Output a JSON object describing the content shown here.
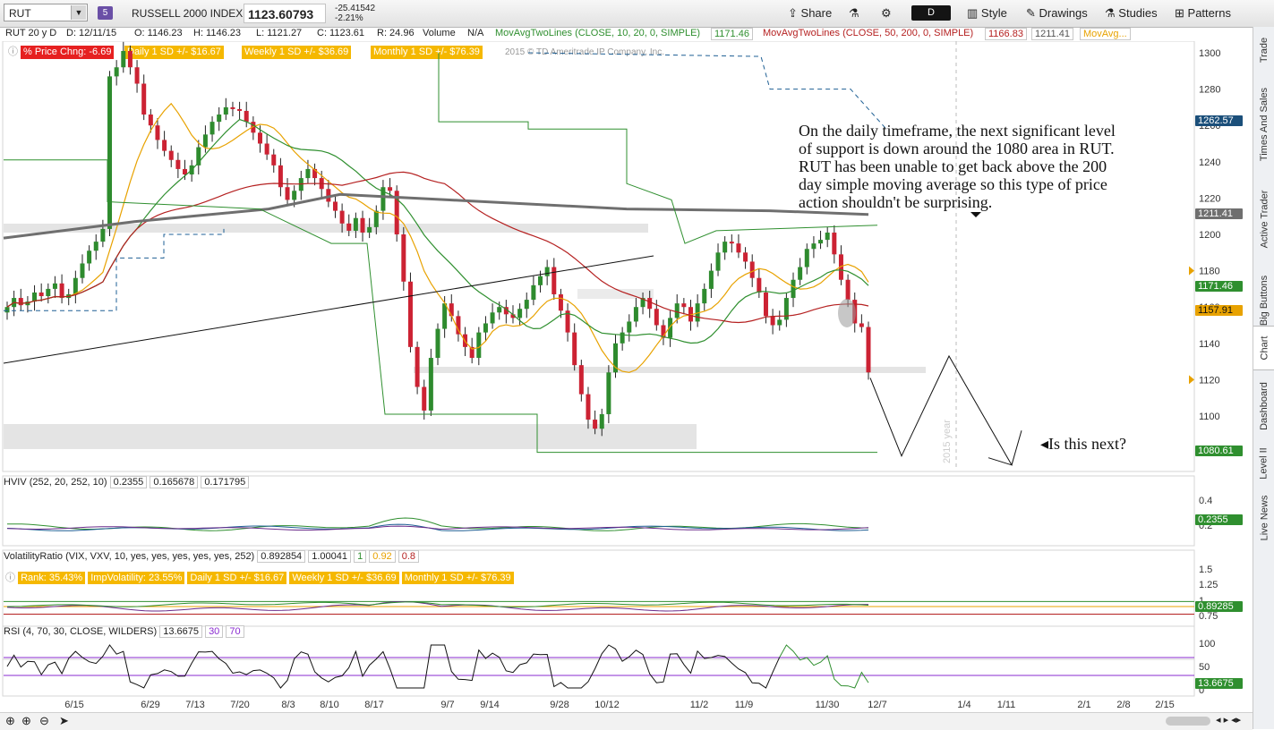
{
  "toolbar": {
    "symbol": "RUT",
    "symbol_badge": "5",
    "index_name": "RUSSELL 2000 INDEX",
    "last_price": "1123.60793",
    "net_change": "-25.41542",
    "pct_change": "-2.21%",
    "share": "Share",
    "style": "Style",
    "drawings": "Drawings",
    "studies": "Studies",
    "patterns": "Patterns",
    "aggregation": "D"
  },
  "infobar": {
    "period": "RUT 20 y D",
    "date": "D: 12/11/15",
    "open": "O: 1146.23",
    "high": "H: 1146.23",
    "low": "L: 1121.27",
    "close": "C: 1123.61",
    "range": "R: 24.96",
    "volume_label": "Volume",
    "volume_value": "N/A",
    "ma1_label": "MovAvgTwoLines (CLOSE, 10, 20, 0, SIMPLE)",
    "ma1_value": "1171.46",
    "ma2_label": "MovAvgTwoLines (CLOSE, 50, 200, 0, SIMPLE)",
    "ma2_value1": "1166.83",
    "ma2_value2": "1211.41",
    "ma3_label": "MovAvg..."
  },
  "banner": {
    "pct_price_change": "% Price Chng: -6.69",
    "daily_sd": "Daily 1 SD +/- $16.67",
    "weekly_sd": "Weekly 1 SD +/- $36.69",
    "monthly_sd": "Monthly 1 SD +/- $76.39",
    "copyright": "2015 © TD Ameritrade IP Company, Inc."
  },
  "annotations": {
    "main_text": [
      "On the daily  timeframe, the next significant level",
      "of support is down around the 1080 area in RUT.",
      "RUT has been unable to get back above the 200",
      "day simple moving average so this type of price",
      "action shouldn't be surprising."
    ],
    "question": "Is this next?",
    "year_marker": "2015 year"
  },
  "hviv": {
    "label": "HVIV (252, 20, 252, 10)",
    "v1": "0.2355",
    "v2": "0.165678",
    "v3": "0.171795",
    "axis_ticks": [
      "0.4",
      "0.2"
    ],
    "last_box": "0.2355"
  },
  "volratio": {
    "label": "VolatilityRatio (VIX, VXV, 10, yes, yes, yes, yes, yes, 252)",
    "v1": "0.892854",
    "v2": "1.00041",
    "v3": "1",
    "v4": "0.92",
    "v5": "0.8",
    "rank": "Rank: 35.43%",
    "impvol": "ImpVolatility: 23.55%",
    "daily_sd": "Daily 1 SD +/- $16.67",
    "weekly_sd": "Weekly 1 SD +/- $36.69",
    "monthly_sd": "Monthly 1 SD +/- $76.39",
    "axis_ticks": [
      "1.5",
      "1.25",
      "1",
      "0.75"
    ],
    "last_box": "0.89285"
  },
  "rsi": {
    "label": "RSI (4, 70, 30, CLOSE, WILDERS)",
    "value": "13.6675",
    "os": "30",
    "ob": "70",
    "axis_ticks": [
      "100",
      "50",
      "0"
    ],
    "last_box": "13.6675"
  },
  "side_tabs": [
    "Trade",
    "Times And Sales",
    "Active Trader",
    "Big Buttons",
    "Chart",
    "Dashboard",
    "Level II",
    "Live News"
  ],
  "colors": {
    "up_candle": "#2e8b2e",
    "down_candle": "#cc2233",
    "ma10": "#e8a200",
    "ma20": "#2f8f2f",
    "ma50": "#b52121",
    "ma200": "#6f6f6f",
    "sd_band": "#2f8f2f",
    "dashed_band": "#1e5f94"
  },
  "chart_data": {
    "type": "candlestick",
    "title": "RUSSELL 2000 INDEX",
    "ylim": [
      1080,
      1300
    ],
    "y_ticks": [
      1100,
      1120,
      1140,
      1160,
      1180,
      1200,
      1220,
      1240,
      1260,
      1280,
      1300
    ],
    "x_tick_labels": [
      "6/15",
      "6/29",
      "7/13",
      "7/20",
      "8/3",
      "8/10",
      "8/17",
      "9/7",
      "9/14",
      "9/28",
      "10/12",
      "11/2",
      "11/9",
      "11/30",
      "12/7",
      "1/4",
      "1/11",
      "2/1",
      "2/8",
      "2/15"
    ],
    "axis_labels_right": [
      {
        "value": 1262.57,
        "label": "1262.57",
        "color": "#1b4f7a"
      },
      {
        "value": 1211.41,
        "label": "1211.41",
        "color": "#6f6f6f"
      },
      {
        "value": 1171.46,
        "label": "1171.46",
        "color": "#2f8f2f"
      },
      {
        "value": 1157.91,
        "label": "1157.91",
        "color": "#e8a200"
      },
      {
        "value": 1080.61,
        "label": "1080.61",
        "color": "#2f8f2f"
      }
    ],
    "ohlc_last": {
      "date": "12/11/15",
      "open": 1146.23,
      "high": 1146.23,
      "low": 1121.27,
      "close": 1123.61
    },
    "close_approx": [
      1160,
      1165,
      1161,
      1163,
      1168,
      1166,
      1170,
      1173,
      1165,
      1167,
      1176,
      1184,
      1191,
      1196,
      1203,
      1287,
      1292,
      1301,
      1292,
      1283,
      1266,
      1260,
      1252,
      1246,
      1241,
      1236,
      1233,
      1238,
      1248,
      1255,
      1262,
      1266,
      1270,
      1269,
      1268,
      1262,
      1256,
      1250,
      1244,
      1238,
      1226,
      1219,
      1224,
      1231,
      1236,
      1231,
      1225,
      1218,
      1213,
      1206,
      1202,
      1209,
      1201,
      1204,
      1213,
      1226,
      1224,
      1200,
      1174,
      1138,
      1116,
      1103,
      1132,
      1148,
      1162,
      1155,
      1145,
      1138,
      1132,
      1146,
      1151,
      1157,
      1160,
      1156,
      1154,
      1159,
      1164,
      1172,
      1177,
      1182,
      1167,
      1158,
      1146,
      1128,
      1112,
      1098,
      1093,
      1101,
      1124,
      1140,
      1146,
      1152,
      1160,
      1165,
      1159,
      1150,
      1143,
      1154,
      1162,
      1160,
      1152,
      1162,
      1170,
      1180,
      1190,
      1196,
      1195,
      1190,
      1185,
      1176,
      1168,
      1155,
      1150,
      1153,
      1165,
      1175,
      1182,
      1192,
      1195,
      1197,
      1201,
      1189,
      1175,
      1164,
      1151,
      1149,
      1124
    ]
  }
}
